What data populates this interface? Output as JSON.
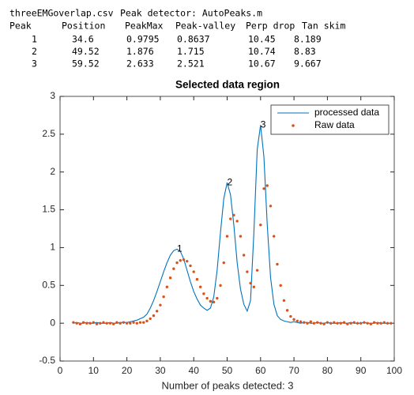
{
  "header": {
    "file": "threeEMGoverlap.csv",
    "detector": "Peak detector: AutoPeaks.m"
  },
  "table": {
    "columns": [
      "Peak",
      "Position",
      "PeakMax",
      "Peak-valley",
      "Perp drop",
      "Tan skim"
    ],
    "rows": [
      [
        1,
        34.6,
        0.9795,
        0.8637,
        10.45,
        8.189
      ],
      [
        2,
        49.52,
        1.876,
        1.715,
        10.74,
        8.83
      ],
      [
        3,
        59.52,
        2.633,
        2.521,
        10.67,
        9.667
      ]
    ]
  },
  "chart_data": {
    "type": "line",
    "title": "Selected data region",
    "xlabel": "Number of peaks detected: 3",
    "xlim": [
      0,
      100
    ],
    "xticks": [
      0,
      10,
      20,
      30,
      40,
      50,
      60,
      70,
      80,
      90,
      100
    ],
    "ylim": [
      -0.5,
      3
    ],
    "yticks": [
      -0.5,
      0,
      0.5,
      1,
      1.5,
      2,
      2.5,
      3
    ],
    "grid": false,
    "legend": "top-right",
    "x": [
      4,
      5,
      6,
      7,
      8,
      9,
      10,
      11,
      12,
      13,
      14,
      15,
      16,
      17,
      18,
      19,
      20,
      21,
      22,
      23,
      24,
      25,
      26,
      27,
      28,
      29,
      30,
      31,
      32,
      33,
      34,
      35,
      36,
      37,
      38,
      39,
      40,
      41,
      42,
      43,
      44,
      45,
      46,
      47,
      48,
      49,
      50,
      51,
      52,
      53,
      54,
      55,
      56,
      57,
      58,
      59,
      60,
      61,
      62,
      63,
      64,
      65,
      66,
      67,
      68,
      69,
      70,
      71,
      72,
      73,
      74,
      75,
      76,
      77,
      78,
      79,
      80,
      81,
      82,
      83,
      84,
      85,
      86,
      87,
      88,
      89,
      90,
      91,
      92,
      93,
      94,
      95,
      96,
      97,
      98,
      99
    ],
    "series": [
      {
        "name": "processed data",
        "type": "line",
        "color": "#0072bd",
        "values": [
          0,
          0.01,
          0,
          0,
          0.01,
          0,
          0,
          0.01,
          0,
          0,
          0,
          0.01,
          0,
          0,
          0.01,
          0.01,
          0.01,
          0.02,
          0.03,
          0.04,
          0.06,
          0.08,
          0.12,
          0.2,
          0.3,
          0.42,
          0.55,
          0.68,
          0.8,
          0.9,
          0.96,
          0.98,
          0.95,
          0.85,
          0.7,
          0.55,
          0.42,
          0.32,
          0.24,
          0.2,
          0.17,
          0.2,
          0.35,
          0.7,
          1.2,
          1.65,
          1.86,
          1.7,
          1.3,
          0.8,
          0.45,
          0.25,
          0.16,
          0.3,
          1.2,
          2.3,
          2.62,
          2.2,
          1.3,
          0.6,
          0.25,
          0.1,
          0.05,
          0.03,
          0.02,
          0.01,
          0.02,
          0.01,
          0,
          0.01,
          0.01,
          0,
          0,
          0.01,
          0,
          0,
          0.01,
          0,
          0,
          0,
          0.01,
          0,
          0,
          0.01,
          0,
          0,
          0,
          0.01,
          0,
          0,
          0,
          0.01,
          0,
          0,
          0,
          0
        ]
      },
      {
        "name": "Raw data",
        "type": "scatter",
        "color": "#d95319",
        "values": [
          0.01,
          0,
          -0.01,
          0.01,
          0,
          0,
          0.01,
          -0.01,
          0,
          0.01,
          0,
          0,
          -0.01,
          0.01,
          0,
          0.01,
          0,
          0,
          0.01,
          0,
          0.01,
          0.01,
          0.03,
          0.06,
          0.1,
          0.16,
          0.24,
          0.35,
          0.48,
          0.6,
          0.72,
          0.8,
          0.83,
          0.84,
          0.82,
          0.76,
          0.68,
          0.58,
          0.48,
          0.39,
          0.33,
          0.29,
          0.28,
          0.33,
          0.5,
          0.8,
          1.15,
          1.38,
          1.43,
          1.35,
          1.15,
          0.9,
          0.68,
          0.53,
          0.48,
          0.7,
          1.3,
          1.78,
          1.82,
          1.55,
          1.15,
          0.78,
          0.5,
          0.3,
          0.17,
          0.09,
          0.05,
          0.03,
          0.02,
          0.01,
          0,
          0.02,
          0,
          0.01,
          0,
          -0.01,
          0.01,
          0,
          0.01,
          0,
          0,
          0.01,
          -0.01,
          0,
          0.01,
          0,
          0,
          0.01,
          0,
          -0.01,
          0.01,
          0,
          0,
          0.01,
          0,
          0
        ]
      }
    ],
    "annotations": [
      {
        "text": "1",
        "x": 35,
        "y": 0.98
      },
      {
        "text": "2",
        "x": 50,
        "y": 1.86
      },
      {
        "text": "3",
        "x": 60,
        "y": 2.62
      }
    ]
  }
}
